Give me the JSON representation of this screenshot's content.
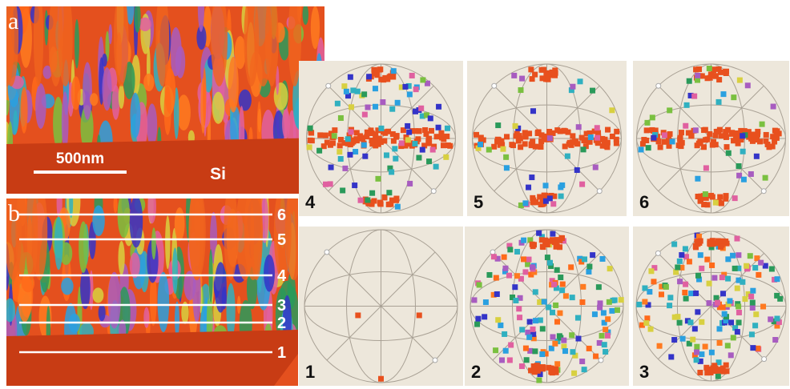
{
  "panels": {
    "a": {
      "label": "a",
      "scale_bar": "500nm",
      "substrate": "Si"
    },
    "b": {
      "label": "b",
      "line_labels": [
        "1",
        "2",
        "3",
        "4",
        "5",
        "6"
      ]
    }
  },
  "pole_figures": [
    {
      "label": "4"
    },
    {
      "label": "5"
    },
    {
      "label": "6"
    },
    {
      "label": "1"
    },
    {
      "label": "2"
    },
    {
      "label": "3"
    }
  ]
}
